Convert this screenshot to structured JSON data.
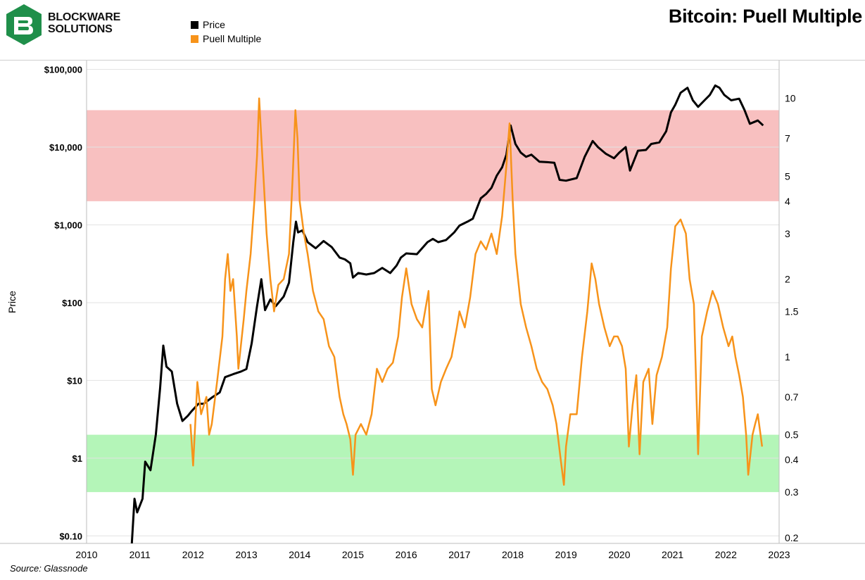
{
  "header": {
    "logo_text_line1": "BLOCKWARE",
    "logo_text_line2": "SOLUTIONS",
    "title": "Bitcoin: Puell Multiple"
  },
  "legend": [
    {
      "label": "Price",
      "color": "#000000"
    },
    {
      "label": "Puell Multiple",
      "color": "#F7931A"
    }
  ],
  "footer": {
    "source": "Source: Glassnode"
  },
  "colors": {
    "logo_green": "#1f8f4a",
    "red_zone": "#f8c0c0",
    "green_zone": "#b4f5b8",
    "price_line": "#000000",
    "puell_line": "#F7931A"
  },
  "chart_data": {
    "type": "line",
    "title": "Bitcoin: Puell Multiple",
    "xlabel": "",
    "ylabel": "Price",
    "x_ticks": [
      "2010",
      "2011",
      "2012",
      "2013",
      "2014",
      "2015",
      "2016",
      "2017",
      "2018",
      "2019",
      "2020",
      "2021",
      "2022",
      "2023"
    ],
    "y_left": {
      "scale": "log",
      "range": [
        0.08,
        130000
      ],
      "ticks": [
        0.1,
        1,
        10,
        100,
        1000,
        10000,
        100000
      ],
      "tick_labels": [
        "$0.10",
        "$1",
        "$10",
        "$100",
        "$1,000",
        "$10,000",
        "$100,000"
      ]
    },
    "y_right": {
      "scale": "log",
      "range": [
        0.19,
        14
      ],
      "ticks": [
        0.2,
        0.3,
        0.4,
        0.5,
        0.7,
        1,
        1.5,
        2,
        3,
        4,
        5,
        7,
        10
      ],
      "tick_labels": [
        "0.2",
        "0.3",
        "0.4",
        "0.5",
        "0.7",
        "1",
        "1.5",
        "2",
        "3",
        "4",
        "5",
        "7",
        "10"
      ]
    },
    "zones": [
      {
        "name": "red",
        "axis": "right",
        "from": 4,
        "to": 9
      },
      {
        "name": "green",
        "axis": "right",
        "from": 0.3,
        "to": 0.5
      }
    ],
    "grid": true,
    "legend_position": "top-left",
    "series": [
      {
        "name": "Price",
        "axis": "left",
        "points": [
          [
            2010.85,
            0.08
          ],
          [
            2010.9,
            0.3
          ],
          [
            2010.95,
            0.2
          ],
          [
            2011.05,
            0.3
          ],
          [
            2011.1,
            0.9
          ],
          [
            2011.2,
            0.7
          ],
          [
            2011.3,
            2
          ],
          [
            2011.38,
            8
          ],
          [
            2011.44,
            28
          ],
          [
            2011.5,
            15
          ],
          [
            2011.6,
            13
          ],
          [
            2011.7,
            5
          ],
          [
            2011.8,
            3
          ],
          [
            2011.9,
            3.5
          ],
          [
            2011.97,
            4
          ],
          [
            2012.1,
            5
          ],
          [
            2012.2,
            5
          ],
          [
            2012.35,
            6
          ],
          [
            2012.5,
            7
          ],
          [
            2012.6,
            11
          ],
          [
            2012.75,
            12
          ],
          [
            2012.9,
            13
          ],
          [
            2013.0,
            14
          ],
          [
            2013.1,
            30
          ],
          [
            2013.2,
            90
          ],
          [
            2013.28,
            200
          ],
          [
            2013.35,
            80
          ],
          [
            2013.45,
            110
          ],
          [
            2013.55,
            90
          ],
          [
            2013.7,
            120
          ],
          [
            2013.8,
            180
          ],
          [
            2013.88,
            600
          ],
          [
            2013.93,
            1100
          ],
          [
            2013.97,
            800
          ],
          [
            2014.05,
            850
          ],
          [
            2014.15,
            600
          ],
          [
            2014.3,
            500
          ],
          [
            2014.45,
            620
          ],
          [
            2014.6,
            520
          ],
          [
            2014.75,
            380
          ],
          [
            2014.85,
            360
          ],
          [
            2014.95,
            320
          ],
          [
            2015.0,
            210
          ],
          [
            2015.1,
            240
          ],
          [
            2015.25,
            230
          ],
          [
            2015.4,
            240
          ],
          [
            2015.55,
            280
          ],
          [
            2015.7,
            240
          ],
          [
            2015.82,
            300
          ],
          [
            2015.9,
            380
          ],
          [
            2016.0,
            430
          ],
          [
            2016.2,
            420
          ],
          [
            2016.4,
            600
          ],
          [
            2016.5,
            660
          ],
          [
            2016.6,
            600
          ],
          [
            2016.75,
            640
          ],
          [
            2016.9,
            800
          ],
          [
            2017.0,
            980
          ],
          [
            2017.15,
            1100
          ],
          [
            2017.25,
            1200
          ],
          [
            2017.4,
            2200
          ],
          [
            2017.5,
            2500
          ],
          [
            2017.6,
            3000
          ],
          [
            2017.7,
            4300
          ],
          [
            2017.8,
            5500
          ],
          [
            2017.88,
            8000
          ],
          [
            2017.96,
            19000
          ],
          [
            2018.05,
            11000
          ],
          [
            2018.15,
            8500
          ],
          [
            2018.25,
            7500
          ],
          [
            2018.35,
            8000
          ],
          [
            2018.5,
            6500
          ],
          [
            2018.65,
            6400
          ],
          [
            2018.78,
            6300
          ],
          [
            2018.88,
            3800
          ],
          [
            2019.0,
            3700
          ],
          [
            2019.2,
            4000
          ],
          [
            2019.35,
            7500
          ],
          [
            2019.5,
            12000
          ],
          [
            2019.6,
            10000
          ],
          [
            2019.75,
            8200
          ],
          [
            2019.9,
            7200
          ],
          [
            2020.0,
            8500
          ],
          [
            2020.12,
            10000
          ],
          [
            2020.2,
            5000
          ],
          [
            2020.35,
            9000
          ],
          [
            2020.5,
            9200
          ],
          [
            2020.6,
            11000
          ],
          [
            2020.75,
            11500
          ],
          [
            2020.88,
            16000
          ],
          [
            2020.97,
            28000
          ],
          [
            2021.05,
            35000
          ],
          [
            2021.15,
            50000
          ],
          [
            2021.28,
            58000
          ],
          [
            2021.38,
            40000
          ],
          [
            2021.48,
            33000
          ],
          [
            2021.6,
            40000
          ],
          [
            2021.7,
            47000
          ],
          [
            2021.8,
            62000
          ],
          [
            2021.88,
            58000
          ],
          [
            2021.97,
            47000
          ],
          [
            2022.1,
            40000
          ],
          [
            2022.25,
            42000
          ],
          [
            2022.35,
            30000
          ],
          [
            2022.45,
            20000
          ],
          [
            2022.6,
            22000
          ],
          [
            2022.7,
            19000
          ]
        ]
      },
      {
        "name": "Puell Multiple",
        "axis": "right",
        "points": [
          [
            2011.95,
            0.55
          ],
          [
            2012.0,
            0.38
          ],
          [
            2012.08,
            0.8
          ],
          [
            2012.15,
            0.6
          ],
          [
            2012.25,
            0.7
          ],
          [
            2012.3,
            0.5
          ],
          [
            2012.35,
            0.55
          ],
          [
            2012.45,
            0.8
          ],
          [
            2012.55,
            1.2
          ],
          [
            2012.6,
            2.0
          ],
          [
            2012.65,
            2.5
          ],
          [
            2012.7,
            1.8
          ],
          [
            2012.75,
            2.0
          ],
          [
            2012.82,
            1.2
          ],
          [
            2012.85,
            0.9
          ],
          [
            2012.95,
            1.4
          ],
          [
            2013.0,
            1.8
          ],
          [
            2013.08,
            2.5
          ],
          [
            2013.15,
            4.0
          ],
          [
            2013.2,
            6.0
          ],
          [
            2013.24,
            10.0
          ],
          [
            2013.28,
            7.0
          ],
          [
            2013.32,
            5.0
          ],
          [
            2013.38,
            3.0
          ],
          [
            2013.45,
            2.0
          ],
          [
            2013.52,
            1.5
          ],
          [
            2013.6,
            1.9
          ],
          [
            2013.7,
            2.0
          ],
          [
            2013.8,
            2.5
          ],
          [
            2013.87,
            5.0
          ],
          [
            2013.92,
            9.0
          ],
          [
            2013.96,
            7.0
          ],
          [
            2014.0,
            4.0
          ],
          [
            2014.08,
            3.0
          ],
          [
            2014.15,
            2.5
          ],
          [
            2014.25,
            1.8
          ],
          [
            2014.35,
            1.5
          ],
          [
            2014.45,
            1.4
          ],
          [
            2014.55,
            1.1
          ],
          [
            2014.65,
            1.0
          ],
          [
            2014.75,
            0.7
          ],
          [
            2014.82,
            0.6
          ],
          [
            2014.88,
            0.55
          ],
          [
            2014.95,
            0.48
          ],
          [
            2015.0,
            0.35
          ],
          [
            2015.05,
            0.5
          ],
          [
            2015.15,
            0.55
          ],
          [
            2015.25,
            0.5
          ],
          [
            2015.35,
            0.6
          ],
          [
            2015.45,
            0.9
          ],
          [
            2015.55,
            0.8
          ],
          [
            2015.65,
            0.9
          ],
          [
            2015.75,
            0.95
          ],
          [
            2015.85,
            1.2
          ],
          [
            2015.92,
            1.7
          ],
          [
            2016.0,
            2.2
          ],
          [
            2016.1,
            1.6
          ],
          [
            2016.2,
            1.4
          ],
          [
            2016.3,
            1.3
          ],
          [
            2016.42,
            1.8
          ],
          [
            2016.48,
            0.75
          ],
          [
            2016.55,
            0.65
          ],
          [
            2016.65,
            0.8
          ],
          [
            2016.75,
            0.9
          ],
          [
            2016.85,
            1.0
          ],
          [
            2016.95,
            1.3
          ],
          [
            2017.0,
            1.5
          ],
          [
            2017.1,
            1.3
          ],
          [
            2017.2,
            1.7
          ],
          [
            2017.3,
            2.5
          ],
          [
            2017.4,
            2.8
          ],
          [
            2017.5,
            2.6
          ],
          [
            2017.6,
            3.0
          ],
          [
            2017.7,
            2.5
          ],
          [
            2017.8,
            3.5
          ],
          [
            2017.88,
            5.5
          ],
          [
            2017.94,
            8.0
          ],
          [
            2018.0,
            4.0
          ],
          [
            2018.05,
            2.5
          ],
          [
            2018.15,
            1.6
          ],
          [
            2018.25,
            1.3
          ],
          [
            2018.35,
            1.1
          ],
          [
            2018.45,
            0.9
          ],
          [
            2018.55,
            0.8
          ],
          [
            2018.65,
            0.75
          ],
          [
            2018.75,
            0.65
          ],
          [
            2018.82,
            0.55
          ],
          [
            2018.9,
            0.4
          ],
          [
            2018.96,
            0.32
          ],
          [
            2019.0,
            0.45
          ],
          [
            2019.08,
            0.6
          ],
          [
            2019.2,
            0.6
          ],
          [
            2019.3,
            1.0
          ],
          [
            2019.4,
            1.5
          ],
          [
            2019.48,
            2.3
          ],
          [
            2019.55,
            2.0
          ],
          [
            2019.62,
            1.6
          ],
          [
            2019.72,
            1.3
          ],
          [
            2019.82,
            1.1
          ],
          [
            2019.9,
            1.2
          ],
          [
            2019.97,
            1.2
          ],
          [
            2020.05,
            1.1
          ],
          [
            2020.12,
            0.9
          ],
          [
            2020.18,
            0.45
          ],
          [
            2020.25,
            0.65
          ],
          [
            2020.32,
            0.85
          ],
          [
            2020.38,
            0.42
          ],
          [
            2020.45,
            0.8
          ],
          [
            2020.55,
            0.9
          ],
          [
            2020.62,
            0.55
          ],
          [
            2020.7,
            0.85
          ],
          [
            2020.8,
            1.0
          ],
          [
            2020.9,
            1.3
          ],
          [
            2020.97,
            2.2
          ],
          [
            2021.05,
            3.2
          ],
          [
            2021.15,
            3.4
          ],
          [
            2021.25,
            3.0
          ],
          [
            2021.32,
            2.0
          ],
          [
            2021.4,
            1.6
          ],
          [
            2021.48,
            0.42
          ],
          [
            2021.55,
            1.2
          ],
          [
            2021.65,
            1.5
          ],
          [
            2021.75,
            1.8
          ],
          [
            2021.85,
            1.6
          ],
          [
            2021.95,
            1.3
          ],
          [
            2022.05,
            1.1
          ],
          [
            2022.12,
            1.2
          ],
          [
            2022.18,
            1.0
          ],
          [
            2022.25,
            0.85
          ],
          [
            2022.32,
            0.7
          ],
          [
            2022.38,
            0.5
          ],
          [
            2022.42,
            0.35
          ],
          [
            2022.5,
            0.5
          ],
          [
            2022.55,
            0.55
          ],
          [
            2022.6,
            0.6
          ],
          [
            2022.68,
            0.45
          ]
        ]
      }
    ]
  }
}
